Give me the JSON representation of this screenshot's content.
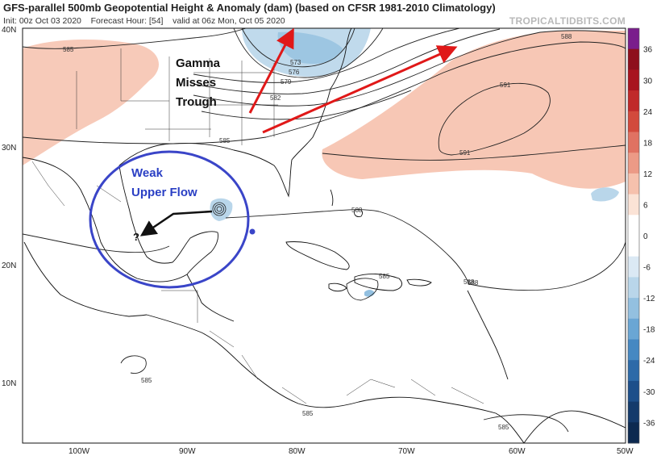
{
  "header": {
    "title": "GFS-parallel 500mb Geopotential Height & Anomaly (dam) (based on CFSR 1981-2010 Climatology)",
    "init": "Init: 00z Oct 03 2020",
    "forecast_hour": "Forecast Hour: [54]",
    "valid": "valid at 06z Mon, Oct 05 2020",
    "brand": "TROPICALTIDBITS.COM"
  },
  "axes": {
    "lat_labels": [
      "40N",
      "30N",
      "20N",
      "10N"
    ],
    "lon_labels": [
      "100W",
      "90W",
      "80W",
      "70W",
      "60W",
      "50W"
    ]
  },
  "colorbar": {
    "labels": [
      "36",
      "30",
      "24",
      "18",
      "12",
      "6",
      "0",
      "-6",
      "-12",
      "-18",
      "-24",
      "-30",
      "-36"
    ],
    "colors": [
      "#7a1e8c",
      "#8e0f1d",
      "#a8141f",
      "#c02a2a",
      "#d24a3c",
      "#e07262",
      "#ec9a86",
      "#f6c1ad",
      "#fbe3d6",
      "#ffffff",
      "#ffffff",
      "#dbe9f4",
      "#b9d6ea",
      "#93c0e0",
      "#6aa6d4",
      "#4688c2",
      "#2d6aa8",
      "#1d4f8a",
      "#143a6b",
      "#0d2a50"
    ]
  },
  "contour_labels": [
    "585",
    "573",
    "576",
    "579",
    "582",
    "585",
    "588",
    "591",
    "591",
    "588",
    "588",
    "585",
    "588",
    "585",
    "585",
    "585"
  ],
  "annotations": {
    "trough_text": [
      "Gamma",
      "Misses",
      "Trough"
    ],
    "flow_text": [
      "Weak",
      "Upper Flow"
    ],
    "question_mark": "?"
  },
  "colors": {
    "arrow_red": "#e01818",
    "circle_blue": "#3a45c8",
    "positive_anomaly": "#f6c1ad",
    "negative_anomaly": "#b9d6ea",
    "coastline": "#111111"
  }
}
